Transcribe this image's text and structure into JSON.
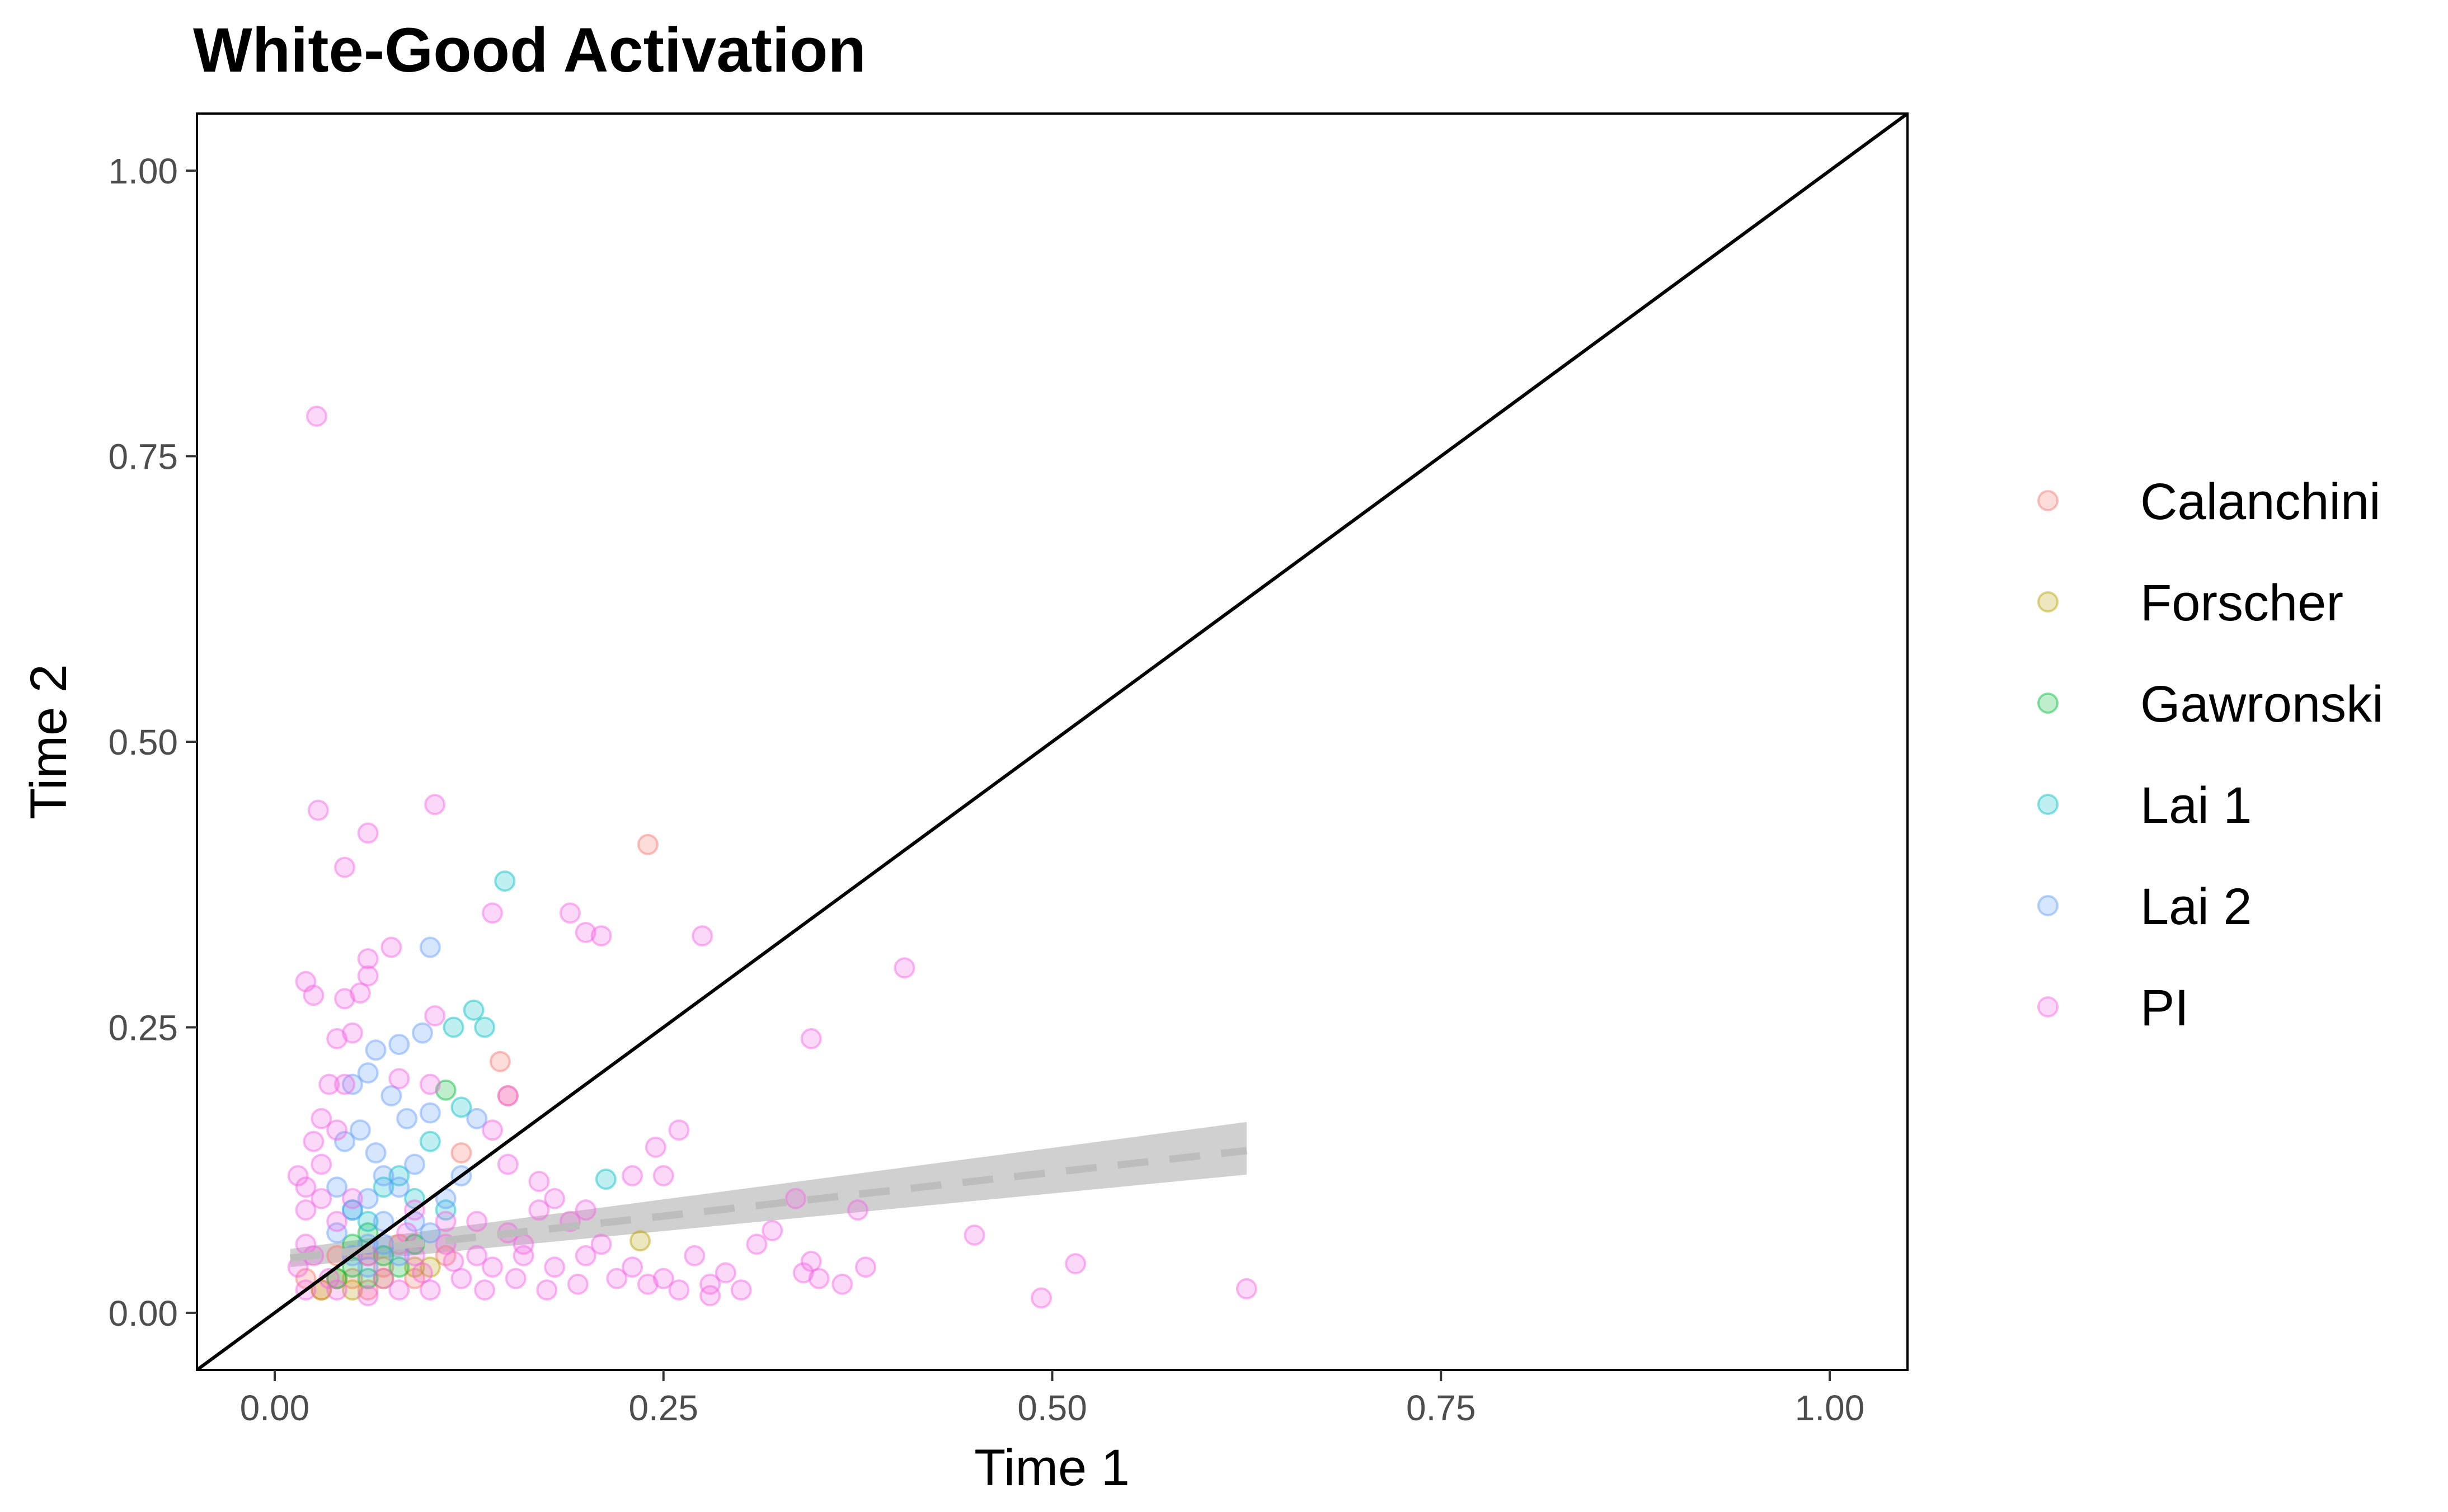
{
  "chart_data": {
    "type": "scatter",
    "title": "White-Good Activation",
    "xlabel": "Time 1",
    "ylabel": "Time 2",
    "xlim": [
      -0.05,
      1.05
    ],
    "ylim": [
      -0.05,
      1.05
    ],
    "x_ticks": [
      0.0,
      0.25,
      0.5,
      0.75,
      1.0
    ],
    "x_tick_labels": [
      "0.00",
      "0.25",
      "0.50",
      "0.75",
      "1.00"
    ],
    "y_ticks": [
      0.0,
      0.25,
      0.5,
      0.75,
      1.0
    ],
    "y_tick_labels": [
      "0.00",
      "0.25",
      "0.50",
      "0.75",
      "1.00"
    ],
    "grid": false,
    "legend_position": "right",
    "reference_line": {
      "type": "identity",
      "x": [
        -0.05,
        1.05
      ],
      "y": [
        -0.05,
        1.05
      ],
      "color": "#000000"
    },
    "trend_line": {
      "style": "dashed",
      "color": "#bdbdbd",
      "ribbon_color": "#c8c8c8",
      "x": [
        0.01,
        0.625
      ],
      "y": [
        0.048,
        0.142
      ],
      "ribbon_lower": [
        0.04,
        0.121
      ],
      "ribbon_upper": [
        0.056,
        0.167
      ]
    },
    "series": [
      {
        "name": "Calanchini",
        "color": "#F8766D",
        "points": [
          [
            0.24,
            0.41
          ],
          [
            0.145,
            0.22
          ],
          [
            0.15,
            0.19
          ],
          [
            0.12,
            0.14
          ],
          [
            0.03,
            0.02
          ],
          [
            0.05,
            0.03
          ],
          [
            0.07,
            0.04
          ],
          [
            0.04,
            0.05
          ],
          [
            0.09,
            0.03
          ],
          [
            0.06,
            0.02
          ],
          [
            0.11,
            0.05
          ],
          [
            0.02,
            0.03
          ],
          [
            0.08,
            0.06
          ]
        ]
      },
      {
        "name": "Forscher",
        "color": "#B79F00",
        "points": [
          [
            0.235,
            0.063
          ],
          [
            0.05,
            0.02
          ],
          [
            0.07,
            0.03
          ],
          [
            0.09,
            0.04
          ],
          [
            0.04,
            0.03
          ],
          [
            0.06,
            0.05
          ],
          [
            0.03,
            0.02
          ],
          [
            0.1,
            0.04
          ]
        ]
      },
      {
        "name": "Gawronski",
        "color": "#00BA38",
        "points": [
          [
            0.11,
            0.195
          ],
          [
            0.05,
            0.04
          ],
          [
            0.06,
            0.03
          ],
          [
            0.07,
            0.05
          ],
          [
            0.08,
            0.04
          ],
          [
            0.04,
            0.03
          ],
          [
            0.09,
            0.06
          ],
          [
            0.06,
            0.07
          ],
          [
            0.05,
            0.06
          ]
        ]
      },
      {
        "name": "Lai 1",
        "color": "#00BFC4",
        "points": [
          [
            0.148,
            0.378
          ],
          [
            0.128,
            0.265
          ],
          [
            0.115,
            0.25
          ],
          [
            0.135,
            0.25
          ],
          [
            0.12,
            0.18
          ],
          [
            0.213,
            0.117
          ],
          [
            0.1,
            0.15
          ],
          [
            0.08,
            0.12
          ],
          [
            0.09,
            0.1
          ],
          [
            0.06,
            0.08
          ],
          [
            0.07,
            0.11
          ],
          [
            0.05,
            0.09
          ],
          [
            0.11,
            0.09
          ]
        ]
      },
      {
        "name": "Lai 2",
        "color": "#619CFF",
        "points": [
          [
            0.1,
            0.32
          ],
          [
            0.08,
            0.235
          ],
          [
            0.095,
            0.245
          ],
          [
            0.065,
            0.23
          ],
          [
            0.05,
            0.2
          ],
          [
            0.06,
            0.21
          ],
          [
            0.075,
            0.19
          ],
          [
            0.085,
            0.17
          ],
          [
            0.1,
            0.175
          ],
          [
            0.13,
            0.17
          ],
          [
            0.055,
            0.16
          ],
          [
            0.045,
            0.15
          ],
          [
            0.065,
            0.14
          ],
          [
            0.07,
            0.12
          ],
          [
            0.08,
            0.11
          ],
          [
            0.06,
            0.1
          ],
          [
            0.05,
            0.09
          ],
          [
            0.07,
            0.08
          ],
          [
            0.09,
            0.08
          ],
          [
            0.04,
            0.07
          ],
          [
            0.06,
            0.06
          ],
          [
            0.08,
            0.05
          ],
          [
            0.05,
            0.05
          ],
          [
            0.07,
            0.06
          ],
          [
            0.1,
            0.07
          ],
          [
            0.11,
            0.1
          ],
          [
            0.12,
            0.12
          ],
          [
            0.06,
            0.04
          ],
          [
            0.09,
            0.13
          ],
          [
            0.04,
            0.11
          ]
        ]
      },
      {
        "name": "PI",
        "color": "#F564E3",
        "points": [
          [
            0.027,
            0.785
          ],
          [
            0.028,
            0.44
          ],
          [
            0.103,
            0.445
          ],
          [
            0.06,
            0.42
          ],
          [
            0.045,
            0.39
          ],
          [
            0.2,
            0.333
          ],
          [
            0.19,
            0.35
          ],
          [
            0.21,
            0.33
          ],
          [
            0.14,
            0.35
          ],
          [
            0.275,
            0.33
          ],
          [
            0.405,
            0.302
          ],
          [
            0.06,
            0.31
          ],
          [
            0.075,
            0.32
          ],
          [
            0.06,
            0.295
          ],
          [
            0.02,
            0.29
          ],
          [
            0.025,
            0.278
          ],
          [
            0.045,
            0.275
          ],
          [
            0.055,
            0.28
          ],
          [
            0.103,
            0.26
          ],
          [
            0.04,
            0.24
          ],
          [
            0.05,
            0.245
          ],
          [
            0.345,
            0.24
          ],
          [
            0.035,
            0.2
          ],
          [
            0.045,
            0.2
          ],
          [
            0.08,
            0.205
          ],
          [
            0.1,
            0.2
          ],
          [
            0.15,
            0.19
          ],
          [
            0.26,
            0.16
          ],
          [
            0.14,
            0.16
          ],
          [
            0.245,
            0.145
          ],
          [
            0.23,
            0.12
          ],
          [
            0.25,
            0.12
          ],
          [
            0.17,
            0.115
          ],
          [
            0.15,
            0.13
          ],
          [
            0.32,
            0.072
          ],
          [
            0.335,
            0.1
          ],
          [
            0.375,
            0.09
          ],
          [
            0.45,
            0.068
          ],
          [
            0.515,
            0.043
          ],
          [
            0.493,
            0.013
          ],
          [
            0.625,
            0.021
          ],
          [
            0.345,
            0.045
          ],
          [
            0.365,
            0.025
          ],
          [
            0.38,
            0.04
          ],
          [
            0.35,
            0.03
          ],
          [
            0.29,
            0.035
          ],
          [
            0.27,
            0.05
          ],
          [
            0.3,
            0.02
          ],
          [
            0.22,
            0.03
          ],
          [
            0.2,
            0.05
          ],
          [
            0.18,
            0.04
          ],
          [
            0.16,
            0.06
          ],
          [
            0.14,
            0.04
          ],
          [
            0.12,
            0.03
          ],
          [
            0.1,
            0.02
          ],
          [
            0.08,
            0.02
          ],
          [
            0.06,
            0.015
          ],
          [
            0.04,
            0.02
          ],
          [
            0.02,
            0.02
          ],
          [
            0.015,
            0.04
          ],
          [
            0.02,
            0.06
          ],
          [
            0.02,
            0.09
          ],
          [
            0.015,
            0.12
          ],
          [
            0.03,
            0.13
          ],
          [
            0.03,
            0.1
          ],
          [
            0.04,
            0.08
          ],
          [
            0.05,
            0.1
          ],
          [
            0.06,
            0.05
          ],
          [
            0.07,
            0.03
          ],
          [
            0.09,
            0.05
          ],
          [
            0.11,
            0.06
          ],
          [
            0.13,
            0.08
          ],
          [
            0.15,
            0.07
          ],
          [
            0.17,
            0.09
          ],
          [
            0.19,
            0.08
          ],
          [
            0.21,
            0.06
          ],
          [
            0.23,
            0.04
          ],
          [
            0.25,
            0.03
          ],
          [
            0.28,
            0.015
          ],
          [
            0.26,
            0.02
          ],
          [
            0.24,
            0.025
          ],
          [
            0.195,
            0.025
          ],
          [
            0.175,
            0.02
          ],
          [
            0.155,
            0.03
          ],
          [
            0.135,
            0.02
          ],
          [
            0.115,
            0.045
          ],
          [
            0.095,
            0.035
          ],
          [
            0.085,
            0.07
          ],
          [
            0.025,
            0.05
          ],
          [
            0.035,
            0.03
          ],
          [
            0.02,
            0.11
          ],
          [
            0.04,
            0.16
          ],
          [
            0.03,
            0.17
          ],
          [
            0.025,
            0.15
          ],
          [
            0.18,
            0.1
          ],
          [
            0.2,
            0.09
          ],
          [
            0.16,
            0.05
          ],
          [
            0.13,
            0.05
          ],
          [
            0.11,
            0.08
          ],
          [
            0.09,
            0.09
          ],
          [
            0.28,
            0.025
          ],
          [
            0.31,
            0.06
          ],
          [
            0.34,
            0.035
          ]
        ]
      }
    ]
  }
}
